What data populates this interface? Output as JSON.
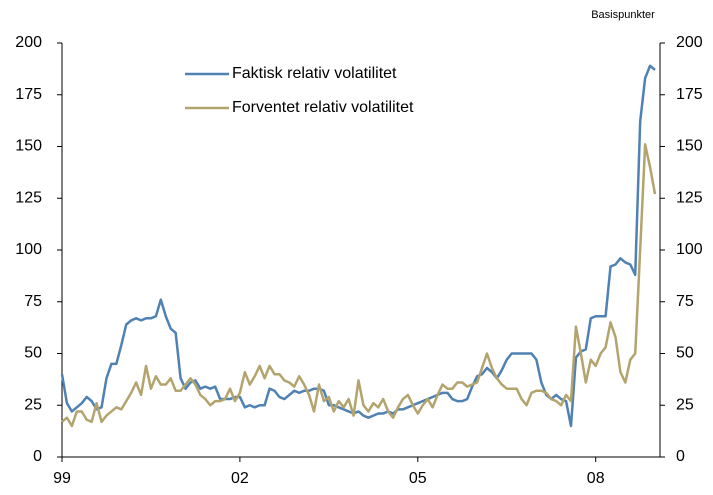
{
  "chart_data": {
    "type": "line",
    "unit_label": "Basispunkter",
    "categories": [
      "99",
      null,
      null,
      null,
      null,
      null,
      null,
      null,
      null,
      null,
      null,
      null,
      null,
      null,
      null,
      null,
      null,
      null,
      null,
      null,
      null,
      null,
      null,
      null,
      null,
      null,
      null,
      null,
      null,
      null,
      null,
      null,
      null,
      null,
      null,
      null,
      "02",
      null,
      null,
      null,
      null,
      null,
      null,
      null,
      null,
      null,
      null,
      null,
      null,
      null,
      null,
      null,
      null,
      null,
      null,
      null,
      null,
      null,
      null,
      null,
      null,
      null,
      null,
      null,
      null,
      null,
      null,
      null,
      null,
      null,
      null,
      null,
      "05",
      null,
      null,
      null,
      null,
      null,
      null,
      null,
      null,
      null,
      null,
      null,
      null,
      null,
      null,
      null,
      null,
      null,
      null,
      null,
      null,
      null,
      null,
      null,
      null,
      null,
      null,
      null,
      null,
      null,
      null,
      null,
      null,
      null,
      null,
      null,
      "08",
      null,
      null,
      null,
      null,
      null,
      null,
      null,
      null,
      null,
      null,
      null,
      null
    ],
    "series": [
      {
        "name": "Faktisk relativ volatilitet",
        "color": "#4f81b3",
        "values": [
          40,
          26,
          22,
          24,
          26,
          29,
          27,
          23,
          24,
          38,
          45,
          45,
          54,
          64,
          66,
          67,
          66,
          67,
          67,
          68,
          76,
          68,
          62,
          60,
          38,
          33,
          36,
          37,
          33,
          34,
          33,
          34,
          28,
          28,
          28,
          29,
          29,
          24,
          25,
          24,
          25,
          25,
          33,
          32,
          29,
          28,
          30,
          32,
          31,
          32,
          32,
          33,
          33,
          32,
          25,
          25,
          24,
          23,
          22,
          21,
          22,
          20,
          19,
          20,
          21,
          21,
          22,
          21,
          23,
          23,
          24,
          25,
          26,
          27,
          28,
          29,
          30,
          31,
          31,
          28,
          27,
          27,
          28,
          34,
          39,
          40,
          43,
          41,
          38,
          42,
          47,
          50,
          50,
          50,
          50,
          50,
          47,
          36,
          30,
          28,
          30,
          28,
          27,
          15,
          48,
          51,
          52,
          67,
          68,
          68,
          68,
          92,
          93,
          96,
          94,
          93,
          88,
          162,
          183,
          189,
          187
        ]
      },
      {
        "name": "Forventet relativ volatilitet",
        "color": "#b3a46e",
        "values": [
          17,
          19,
          15,
          22,
          22,
          18,
          17,
          26,
          17,
          20,
          22,
          24,
          23,
          27,
          31,
          36,
          30,
          44,
          33,
          39,
          35,
          35,
          38,
          32,
          32,
          35,
          38,
          35,
          30,
          28,
          25,
          27,
          27,
          28,
          33,
          27,
          31,
          41,
          35,
          39,
          44,
          38,
          44,
          40,
          40,
          37,
          36,
          34,
          39,
          35,
          30,
          22,
          35,
          27,
          29,
          22,
          27,
          24,
          28,
          20,
          37,
          25,
          22,
          26,
          24,
          28,
          22,
          19,
          24,
          28,
          30,
          25,
          21,
          25,
          28,
          24,
          30,
          35,
          33,
          33,
          36,
          36,
          34,
          35,
          36,
          43,
          50,
          43,
          38,
          35,
          33,
          33,
          33,
          28,
          25,
          31,
          32,
          32,
          31,
          28,
          27,
          25,
          30,
          27,
          63,
          50,
          36,
          47,
          44,
          50,
          53,
          65,
          58,
          41,
          36,
          47,
          50,
          100,
          151,
          140,
          127
        ]
      }
    ],
    "ylim": [
      0,
      200
    ],
    "yticks": [
      0,
      25,
      50,
      75,
      100,
      125,
      150,
      175,
      200
    ],
    "y2lim": [
      0,
      200
    ],
    "y2ticks": [
      0,
      25,
      50,
      75,
      100,
      125,
      150,
      175,
      200
    ],
    "grid": false
  }
}
